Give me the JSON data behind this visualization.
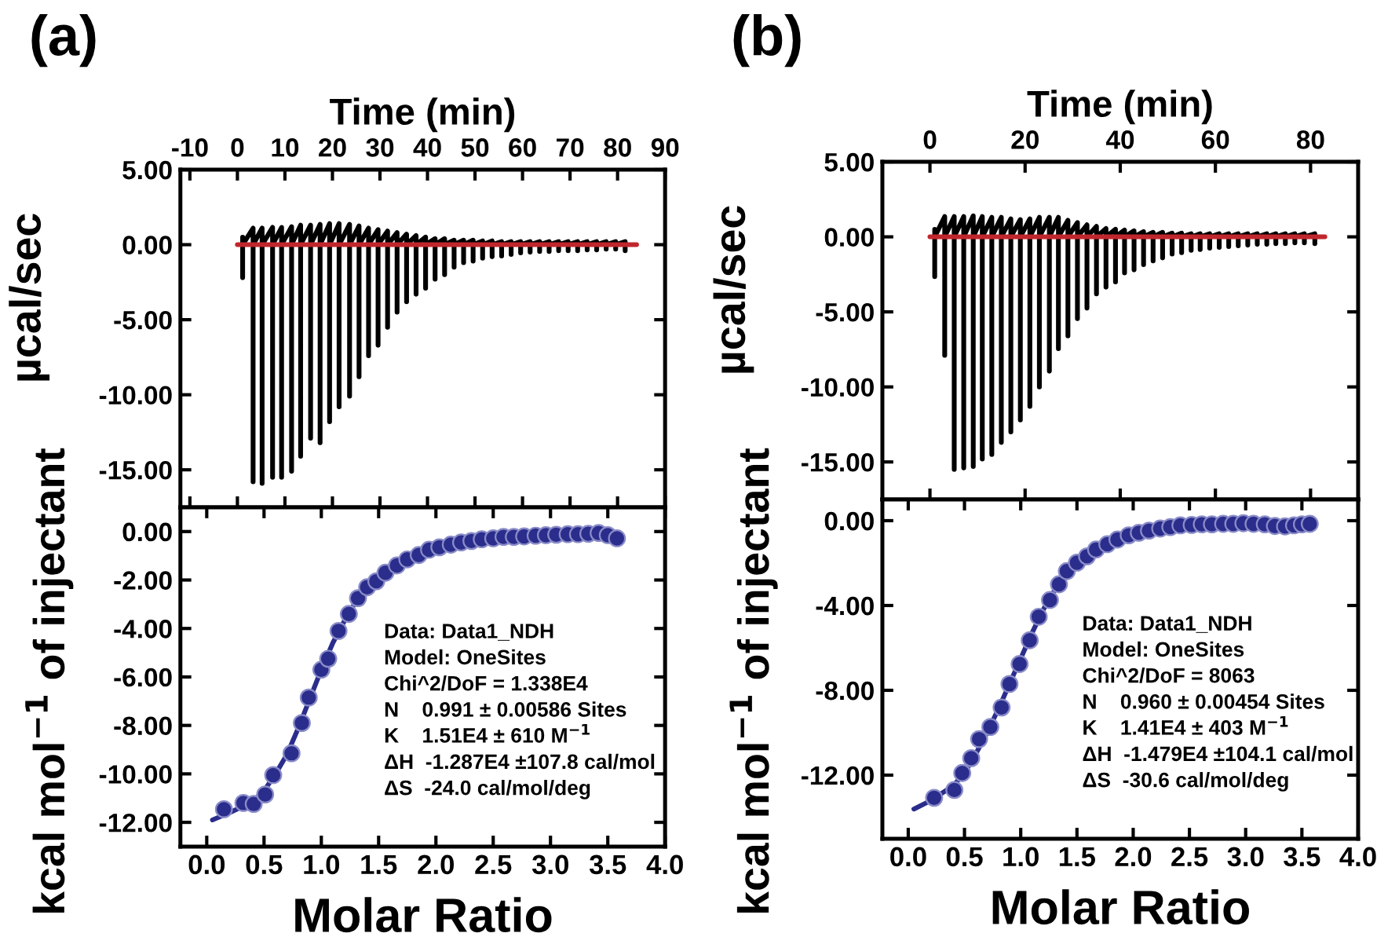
{
  "chart_data": [
    {
      "type": "line",
      "xlabel": "Time (min)",
      "ylabel": "µcal/sec",
      "annotations": [
        "(a)"
      ],
      "xlim": [
        -12,
        90
      ],
      "xticks": [
        -10,
        0,
        10,
        20,
        30,
        40,
        50,
        60,
        70,
        80,
        90
      ],
      "ylim": [
        -17.5,
        5
      ],
      "yticks": [
        {
          "value": 5,
          "label": "5.00"
        },
        {
          "value": 0,
          "label": "0.00"
        },
        {
          "value": -5,
          "label": "-5.00"
        },
        {
          "value": -10,
          "label": "-10.00"
        },
        {
          "value": -15,
          "label": "-15.00"
        }
      ],
      "series": [
        {
          "color": "#000000",
          "x": [
            1.1,
            1.1,
            1.1,
            3.3,
            3.3,
            3.3,
            5.2,
            5.2,
            5.2,
            7.4,
            7.4,
            7.4,
            9.3,
            9.3,
            9.3,
            11.4,
            11.4,
            11.4,
            13.3,
            13.3,
            13.3,
            15.4,
            15.4,
            15.4,
            17.4,
            17.4,
            17.4,
            19.4,
            19.4,
            19.4,
            21.4,
            21.4,
            21.4,
            23.6,
            23.6,
            23.6,
            25.6,
            25.6,
            25.6,
            27.6,
            27.6,
            27.6,
            29.6,
            29.6,
            29.6,
            31.6,
            31.6,
            31.6,
            33.6,
            33.6,
            33.6,
            35.6,
            35.6,
            35.6,
            37.6,
            37.6,
            37.6,
            39.6,
            39.6,
            39.6,
            41.6,
            41.6,
            41.6,
            43.6,
            43.6,
            43.6,
            45.6,
            45.6,
            45.6,
            47.6,
            47.6,
            47.6,
            49.6,
            49.6,
            49.6,
            51.6,
            51.6,
            51.6,
            53.6,
            53.6,
            53.6,
            55.6,
            55.6,
            55.6,
            57.6,
            57.6,
            57.6,
            59.6,
            59.6,
            59.6,
            61.6,
            61.6,
            61.6,
            63.6,
            63.6,
            63.6,
            65.6,
            65.6,
            65.6,
            67.6,
            67.6,
            67.6,
            69.6,
            69.6,
            69.6,
            71.6,
            71.6,
            71.6,
            73.6,
            73.6,
            73.6,
            75.6,
            75.6,
            75.6,
            77.6,
            77.6,
            77.6,
            79.6,
            79.6,
            79.6,
            81.6,
            81.6,
            81.6
          ],
          "values": [
            0.5,
            -2.2,
            0,
            1.1,
            -15.8,
            0,
            1.1,
            -15.9,
            0,
            1.15,
            -15.5,
            0,
            1.15,
            -15.5,
            0,
            1.2,
            -15.1,
            0,
            1.3,
            -14.1,
            0,
            1.3,
            -12.9,
            0,
            1.35,
            -13.2,
            0,
            1.4,
            -11.8,
            0,
            1.4,
            -10.8,
            0,
            1.35,
            -10.1,
            0,
            1.25,
            -8.8,
            0,
            1.1,
            -7.4,
            0,
            1.0,
            -6.7,
            0,
            0.9,
            -5.5,
            0,
            0.8,
            -4.5,
            0,
            0.7,
            -3.8,
            0,
            0.6,
            -3.3,
            0,
            0.5,
            -2.9,
            0,
            0.4,
            -2.3,
            0,
            0.4,
            -2.0,
            0,
            0.3,
            -1.5,
            0,
            0.3,
            -1.2,
            0,
            0.3,
            -1.1,
            0,
            0.25,
            -0.9,
            0,
            0.25,
            -0.8,
            0,
            0.2,
            -0.75,
            0,
            0.2,
            -0.65,
            0,
            0.2,
            -0.55,
            0,
            0.2,
            -0.5,
            0,
            0.2,
            -0.45,
            0,
            0.2,
            -0.45,
            0,
            0.2,
            -0.4,
            0,
            0.2,
            -0.4,
            0,
            0.2,
            -0.4,
            0,
            0.2,
            -0.35,
            0,
            0.2,
            -0.35,
            0,
            0.2,
            -0.3,
            0,
            0.2,
            -0.3,
            0,
            0.2,
            -0.4,
            0
          ]
        },
        {
          "color": "#c0272d",
          "x": [
            0,
            84
          ],
          "values": [
            0,
            0
          ]
        }
      ]
    },
    {
      "type": "scatter",
      "xlabel": "Molar Ratio",
      "ylabel": "kcal mol$^{−1}$ of injectant",
      "annotations": [
        "Data: Data1_NDH",
        "Model: OneSites",
        "Chi^2/DoF = 1.338E4",
        "N    0.991 ± 0.00586 Sites",
        "K    1.51E4 ± 610 M$^{−1}$",
        "ΔH  -1.287E4 ±107.8 cal/mol",
        "ΔS  -24.0 cal/mol/deg"
      ],
      "xlim": [
        -0.23,
        4.0
      ],
      "xticks": [
        {
          "value": 0,
          "label": "0.0"
        },
        {
          "value": 0.5,
          "label": "0.5"
        },
        {
          "value": 1,
          "label": "1.0"
        },
        {
          "value": 1.5,
          "label": "1.5"
        },
        {
          "value": 2,
          "label": "2.0"
        },
        {
          "value": 2.5,
          "label": "2.5"
        },
        {
          "value": 3,
          "label": "3.0"
        },
        {
          "value": 3.5,
          "label": "3.5"
        },
        {
          "value": 4,
          "label": "4.0"
        }
      ],
      "ylim": [
        -13,
        1
      ],
      "yticks": [
        {
          "value": 0,
          "label": "0.00"
        },
        {
          "value": -2,
          "label": "-2.00"
        },
        {
          "value": -4,
          "label": "-4.00"
        },
        {
          "value": -6,
          "label": "-6.00"
        },
        {
          "value": -8,
          "label": "-8.00"
        },
        {
          "value": -10,
          "label": "-10.00"
        },
        {
          "value": -12,
          "label": "-12.00"
        }
      ],
      "series": [
        {
          "type": "line",
          "color": "#2b2d8c",
          "x": [
            0.05,
            0.2,
            0.4,
            0.5,
            0.6,
            0.7,
            0.8,
            0.9,
            1.0,
            1.1,
            1.2,
            1.3,
            1.4,
            1.5,
            1.7,
            1.9,
            2.2,
            2.5,
            3.0,
            3.6
          ],
          "values": [
            -11.9,
            -11.6,
            -11.15,
            -10.7,
            -10.0,
            -9.2,
            -8.1,
            -6.9,
            -5.7,
            -4.6,
            -3.7,
            -2.9,
            -2.3,
            -1.85,
            -1.25,
            -0.9,
            -0.55,
            -0.35,
            -0.22,
            -0.15
          ]
        },
        {
          "marker": "circle",
          "color": "#2b2d8c",
          "x": [
            0.15,
            0.32,
            0.41,
            0.51,
            0.58,
            0.74,
            0.83,
            0.89,
            1.0,
            1.06,
            1.15,
            1.24,
            1.32,
            1.4,
            1.48,
            1.56,
            1.66,
            1.75,
            1.85,
            1.94,
            2.03,
            2.13,
            2.22,
            2.31,
            2.4,
            2.5,
            2.59,
            2.68,
            2.77,
            2.87,
            2.96,
            3.05,
            3.15,
            3.24,
            3.33,
            3.42,
            3.5,
            3.58
          ],
          "values": [
            -11.46,
            -11.2,
            -11.24,
            -10.85,
            -10.05,
            -9.15,
            -7.9,
            -6.85,
            -5.7,
            -5.25,
            -4.1,
            -3.4,
            -2.75,
            -2.3,
            -2.05,
            -1.7,
            -1.4,
            -1.15,
            -0.97,
            -0.75,
            -0.65,
            -0.54,
            -0.45,
            -0.39,
            -0.32,
            -0.28,
            -0.22,
            -0.22,
            -0.2,
            -0.17,
            -0.15,
            -0.13,
            -0.11,
            -0.11,
            -0.09,
            -0.06,
            -0.15,
            -0.28
          ]
        }
      ]
    },
    {
      "type": "line",
      "xlabel": "Time (min)",
      "ylabel": "µcal/sec",
      "annotations": [
        "(b)"
      ],
      "xlim": [
        -10,
        90
      ],
      "xticks": [
        0,
        20,
        40,
        60,
        80
      ],
      "ylim": [
        -17.5,
        5
      ],
      "yticks": [
        {
          "value": 5,
          "label": "5.00"
        },
        {
          "value": 0,
          "label": "0.00"
        },
        {
          "value": -5,
          "label": "-5.00"
        },
        {
          "value": -10,
          "label": "-10.00"
        },
        {
          "value": -15,
          "label": "-15.00"
        }
      ],
      "series": [
        {
          "color": "#000000",
          "x": [
            1.0,
            1.0,
            1.0,
            3.1,
            3.1,
            3.1,
            5.1,
            5.1,
            5.1,
            7.1,
            7.1,
            7.1,
            9.1,
            9.1,
            9.1,
            11.0,
            11.0,
            11.0,
            13.0,
            13.0,
            13.0,
            15.0,
            15.0,
            15.0,
            17.0,
            17.0,
            17.0,
            19.0,
            19.0,
            19.0,
            21.0,
            21.0,
            21.0,
            23.0,
            23.0,
            23.0,
            25.1,
            25.1,
            25.1,
            27.0,
            27.0,
            27.0,
            29.0,
            29.0,
            29.0,
            31.0,
            31.0,
            31.0,
            33.0,
            33.0,
            33.0,
            35.0,
            35.0,
            35.0,
            37.0,
            37.0,
            37.0,
            39.0,
            39.0,
            39.0,
            40.9,
            40.9,
            40.9,
            42.9,
            42.9,
            42.9,
            44.9,
            44.9,
            44.9,
            46.9,
            46.9,
            46.9,
            48.9,
            48.9,
            48.9,
            50.9,
            50.9,
            50.9,
            52.9,
            52.9,
            52.9,
            54.9,
            54.9,
            54.9,
            56.8,
            56.8,
            56.8,
            58.8,
            58.8,
            58.8,
            60.8,
            60.8,
            60.8,
            62.8,
            62.8,
            62.8,
            64.8,
            64.8,
            64.8,
            66.8,
            66.8,
            66.8,
            68.8,
            68.8,
            68.8,
            70.8,
            70.8,
            70.8,
            72.7,
            72.7,
            72.7,
            74.7,
            74.7,
            74.7,
            76.7,
            76.7,
            76.7,
            78.7,
            78.7,
            78.7,
            80.9,
            80.9,
            80.9
          ],
          "values": [
            0.5,
            -2.65,
            0,
            1.35,
            -7.9,
            0,
            1.35,
            -15.5,
            0,
            1.35,
            -15.4,
            0,
            1.4,
            -15.3,
            0,
            1.35,
            -14.8,
            0,
            1.3,
            -14.5,
            0,
            1.3,
            -13.7,
            0,
            1.2,
            -13.0,
            0,
            1.15,
            -12.2,
            0,
            1.2,
            -11.3,
            0,
            1.3,
            -10.0,
            0,
            1.3,
            -8.95,
            0,
            1.3,
            -7.45,
            0,
            1.1,
            -6.6,
            0,
            0.95,
            -5.45,
            0,
            0.8,
            -4.75,
            0,
            0.7,
            -3.8,
            0,
            0.55,
            -3.35,
            0,
            0.5,
            -3.0,
            0,
            0.45,
            -2.4,
            0,
            0.4,
            -2.2,
            0,
            0.35,
            -1.85,
            0,
            0.3,
            -1.6,
            0,
            0.3,
            -1.4,
            0,
            0.25,
            -1.15,
            0,
            0.25,
            -1.05,
            0,
            0.2,
            -0.9,
            0,
            0.2,
            -0.85,
            0,
            0.2,
            -0.75,
            0,
            0.2,
            -0.7,
            0,
            0.2,
            -0.65,
            0,
            0.2,
            -0.6,
            0,
            0.2,
            -0.55,
            0,
            0.2,
            -0.5,
            0,
            0.2,
            -0.5,
            0,
            0.2,
            -0.45,
            0,
            0.2,
            -0.45,
            0,
            0.2,
            -0.4,
            0,
            0.2,
            -0.4,
            0,
            0.2,
            -0.45,
            0
          ]
        },
        {
          "color": "#c0272d",
          "x": [
            0,
            83
          ],
          "values": [
            0,
            0
          ]
        }
      ]
    },
    {
      "type": "scatter",
      "xlabel": "Molar Ratio",
      "ylabel": "kcal mol$^{−1}$ of injectant",
      "annotations": [
        "Data: Data1_NDH",
        "Model: OneSites",
        "Chi^2/DoF = 8063",
        "N    0.960 ± 0.00454 Sites",
        "K    1.41E4 ± 403 M$^{−1}$",
        "ΔH  -1.479E4 ±104.1 cal/mol",
        "ΔS  -30.6 cal/mol/deg"
      ],
      "xlim": [
        -0.23,
        4.0
      ],
      "xticks": [
        {
          "value": 0,
          "label": "0.0"
        },
        {
          "value": 0.5,
          "label": "0.5"
        },
        {
          "value": 1,
          "label": "1.0"
        },
        {
          "value": 1.5,
          "label": "1.5"
        },
        {
          "value": 2,
          "label": "2.0"
        },
        {
          "value": 2.5,
          "label": "2.5"
        },
        {
          "value": 3,
          "label": "3.0"
        },
        {
          "value": 3.5,
          "label": "3.5"
        },
        {
          "value": 4,
          "label": "4.0"
        }
      ],
      "ylim": [
        -15,
        1
      ],
      "yticks": [
        {
          "value": 0,
          "label": "0.00"
        },
        {
          "value": -4,
          "label": "-4.00"
        },
        {
          "value": -8,
          "label": "-8.00"
        },
        {
          "value": -12,
          "label": "-12.00"
        }
      ],
      "series": [
        {
          "type": "line",
          "color": "#2b2d8c",
          "x": [
            0.05,
            0.2,
            0.4,
            0.5,
            0.6,
            0.7,
            0.8,
            0.9,
            1.0,
            1.1,
            1.2,
            1.3,
            1.4,
            1.5,
            1.7,
            1.9,
            2.2,
            2.5,
            3.0,
            3.6
          ],
          "values": [
            -13.6,
            -13.2,
            -12.5,
            -11.9,
            -11.0,
            -10.0,
            -8.9,
            -7.7,
            -6.5,
            -5.3,
            -4.2,
            -3.3,
            -2.6,
            -2.05,
            -1.35,
            -0.9,
            -0.5,
            -0.3,
            -0.18,
            -0.12
          ]
        },
        {
          "marker": "circle",
          "color": "#2b2d8c",
          "x": [
            0.23,
            0.41,
            0.48,
            0.56,
            0.63,
            0.73,
            0.83,
            0.9,
            0.99,
            1.08,
            1.16,
            1.26,
            1.34,
            1.41,
            1.5,
            1.59,
            1.67,
            1.77,
            1.86,
            1.96,
            2.05,
            2.14,
            2.24,
            2.33,
            2.42,
            2.52,
            2.61,
            2.7,
            2.8,
            2.89,
            2.98,
            3.07,
            3.17,
            3.26,
            3.35,
            3.43,
            3.5,
            3.57
          ],
          "values": [
            -13.07,
            -12.7,
            -11.9,
            -11.2,
            -10.3,
            -9.73,
            -8.81,
            -7.7,
            -6.76,
            -5.64,
            -4.53,
            -3.74,
            -3.0,
            -2.38,
            -1.98,
            -1.68,
            -1.36,
            -1.11,
            -0.89,
            -0.69,
            -0.57,
            -0.47,
            -0.37,
            -0.3,
            -0.22,
            -0.2,
            -0.17,
            -0.17,
            -0.15,
            -0.15,
            -0.12,
            -0.15,
            -0.17,
            -0.25,
            -0.27,
            -0.22,
            -0.17,
            -0.15
          ]
        }
      ]
    }
  ]
}
